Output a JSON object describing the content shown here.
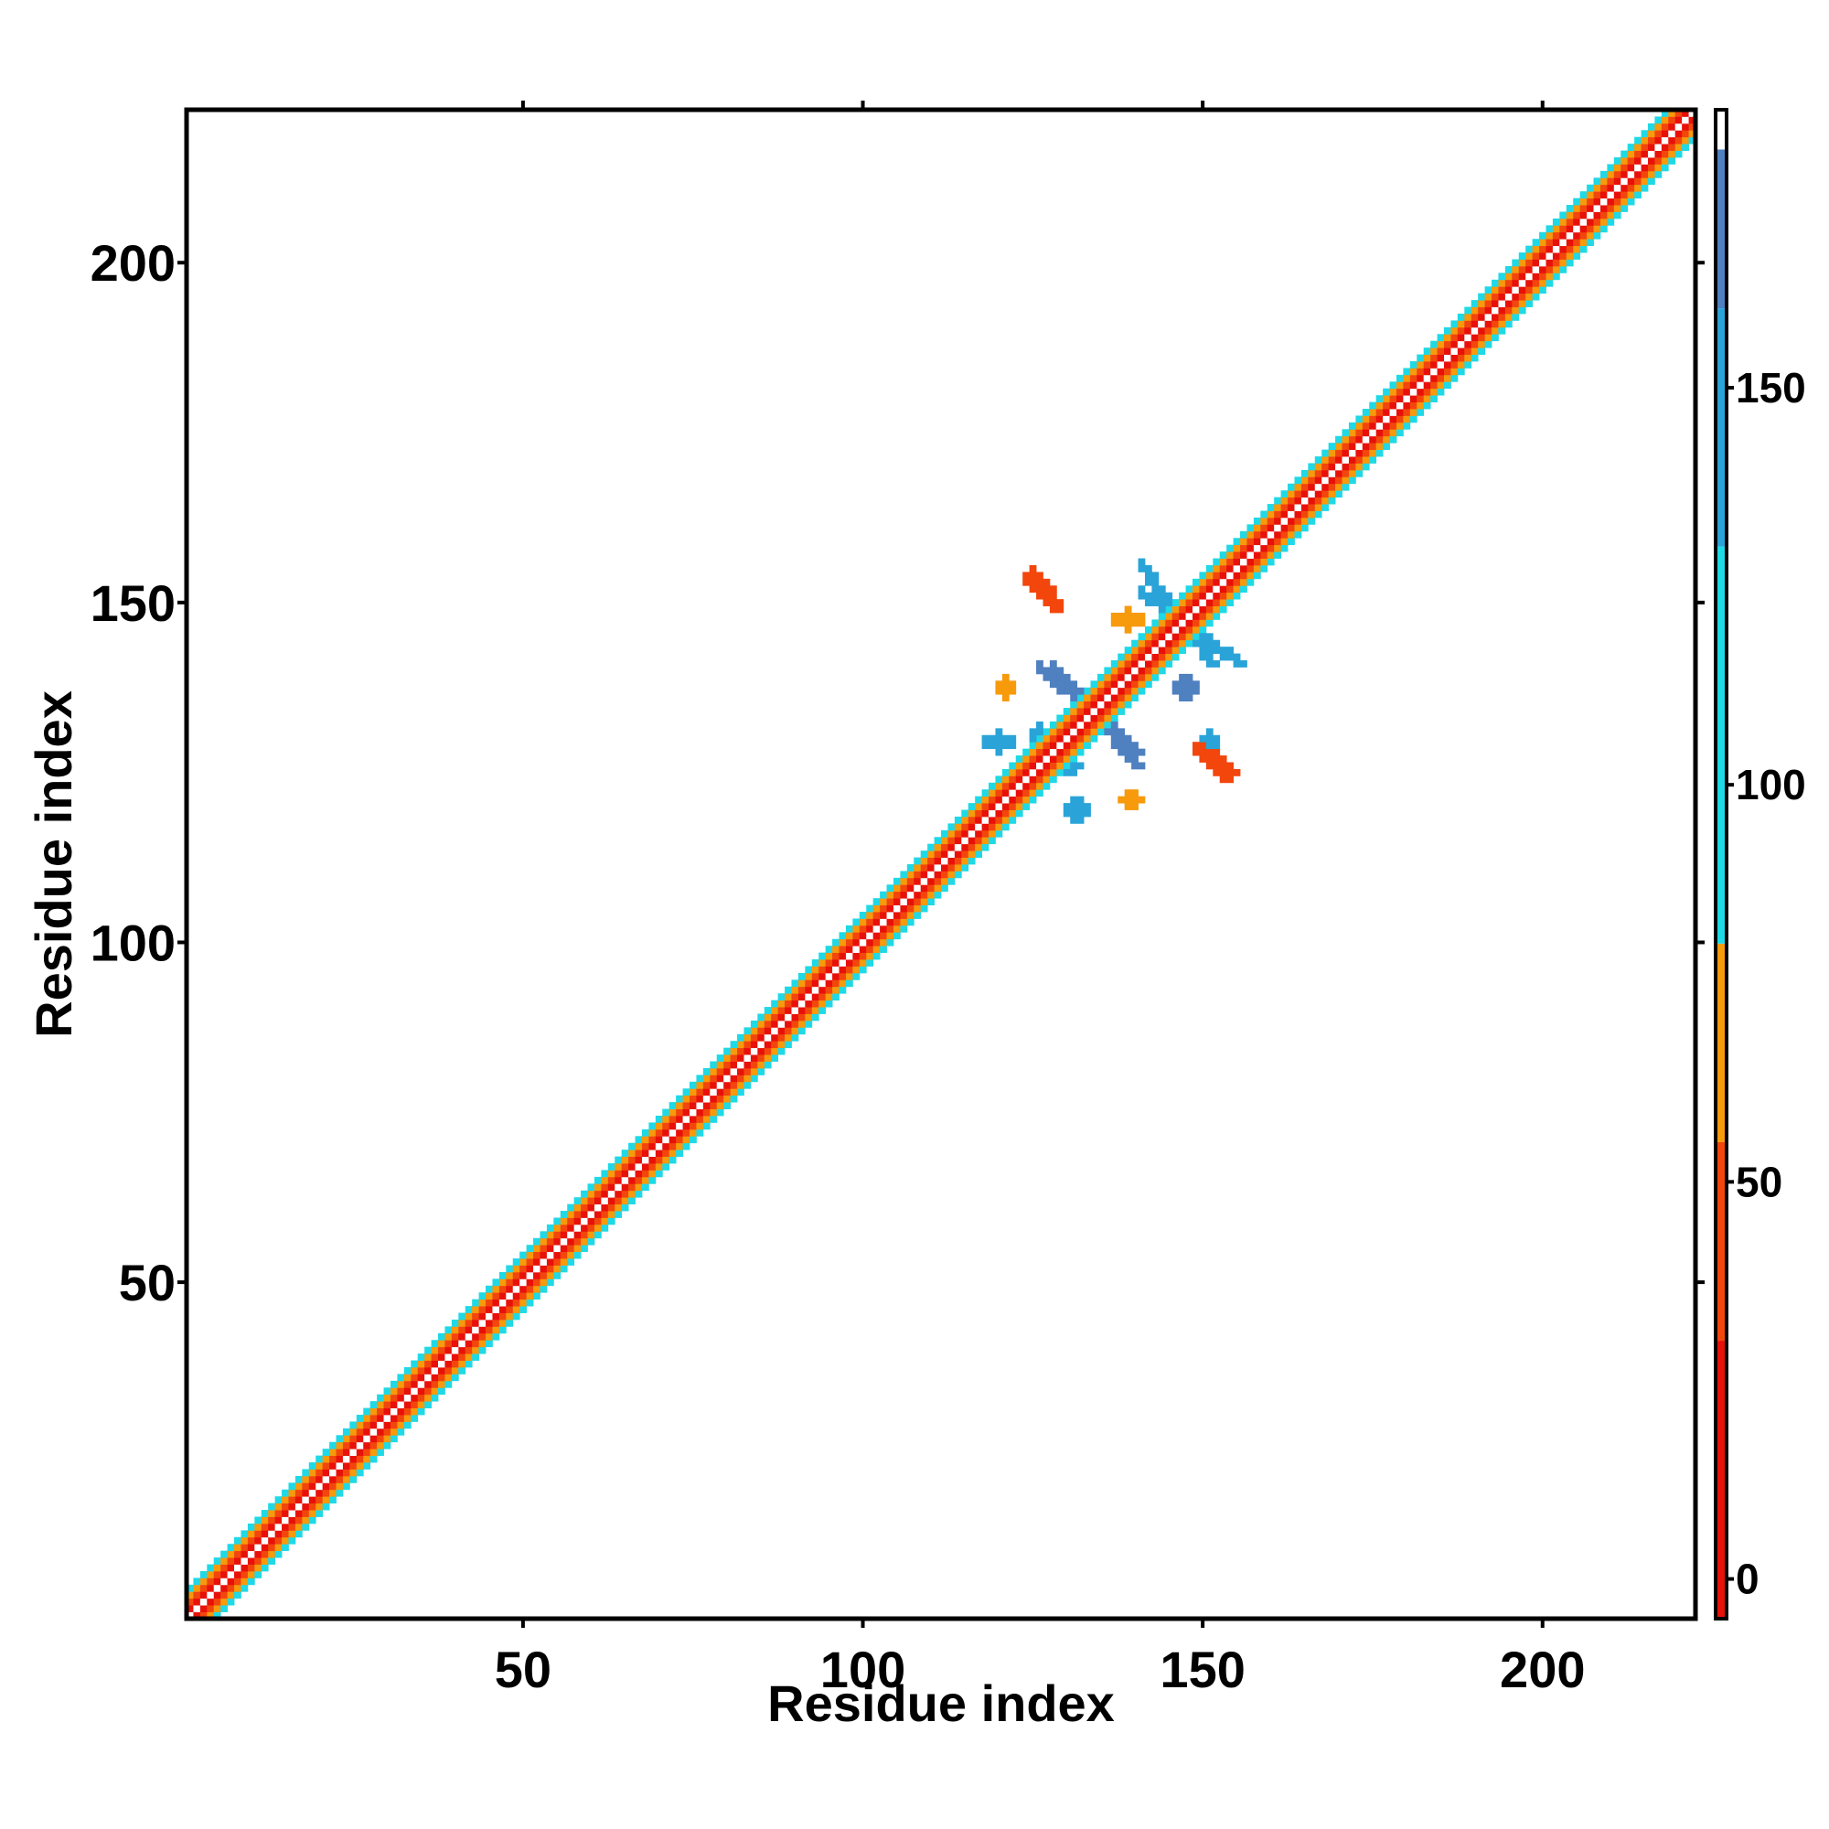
{
  "chart_data": {
    "type": "heatmap",
    "title": "",
    "xlabel": "Residue index",
    "ylabel": "Residue index",
    "xlim": [
      1,
      222
    ],
    "ylim": [
      1,
      222
    ],
    "x_ticks": [
      50,
      100,
      150,
      200
    ],
    "y_ticks": [
      50,
      100,
      150,
      200
    ],
    "colorbar": {
      "range": [
        -5,
        185
      ],
      "ticks": [
        0,
        50,
        100,
        150
      ],
      "bands": [
        {
          "from": -5,
          "to": 30,
          "color": "#e8110a"
        },
        {
          "from": 30,
          "to": 55,
          "color": "#f2460d"
        },
        {
          "from": 55,
          "to": 80,
          "color": "#f79a0b"
        },
        {
          "from": 80,
          "to": 130,
          "color": "#1fd9e6"
        },
        {
          "from": 130,
          "to": 160,
          "color": "#2aa4d8"
        },
        {
          "from": 160,
          "to": 180,
          "color": "#4f80c0"
        },
        {
          "from": 180,
          "to": 185,
          "color": "#ffffff"
        }
      ]
    },
    "diagonal_band": {
      "from": 1,
      "to": 222,
      "offsets": [
        {
          "d": 0,
          "value": 185
        },
        {
          "d": 1,
          "value": 10
        },
        {
          "d": 2,
          "value": 45
        },
        {
          "d": 3,
          "value": 70
        },
        {
          "d": 4,
          "value": 100
        }
      ]
    },
    "contact_clusters": [
      {
        "x": [
          128,
          140
        ],
        "y": [
          126,
          140
        ],
        "orientation": "anti",
        "value": 165
      },
      {
        "x": [
          141,
          151
        ],
        "y": [
          141,
          155
        ],
        "orientation": "anti",
        "value": 155
      },
      {
        "x": [
          125,
          131
        ],
        "y": [
          126,
          130
        ],
        "orientation": "anti",
        "value": 145
      },
      {
        "x": [
          124,
          128
        ],
        "y": [
          149,
          153
        ],
        "orientation": "anti",
        "value": 40
      },
      {
        "x": [
          150,
          154
        ],
        "y": [
          125,
          128
        ],
        "orientation": "anti",
        "value": 40
      },
      {
        "x": [
          118,
          122
        ],
        "y": [
          128,
          131
        ],
        "orientation": "point",
        "value": 140
      },
      {
        "x": [
          130,
          133
        ],
        "y": [
          118,
          121
        ],
        "orientation": "point",
        "value": 140
      },
      {
        "x": [
          120,
          122
        ],
        "y": [
          136,
          139
        ],
        "orientation": "point",
        "value": 60
      },
      {
        "x": [
          138,
          141
        ],
        "y": [
          120,
          122
        ],
        "orientation": "point",
        "value": 60
      },
      {
        "x": [
          146,
          149
        ],
        "y": [
          136,
          139
        ],
        "orientation": "point",
        "value": 165
      },
      {
        "x": [
          137,
          141
        ],
        "y": [
          146,
          149
        ],
        "orientation": "point",
        "value": 60
      },
      {
        "x": [
          150,
          152
        ],
        "y": [
          128,
          131
        ],
        "orientation": "point",
        "value": 140
      }
    ]
  }
}
